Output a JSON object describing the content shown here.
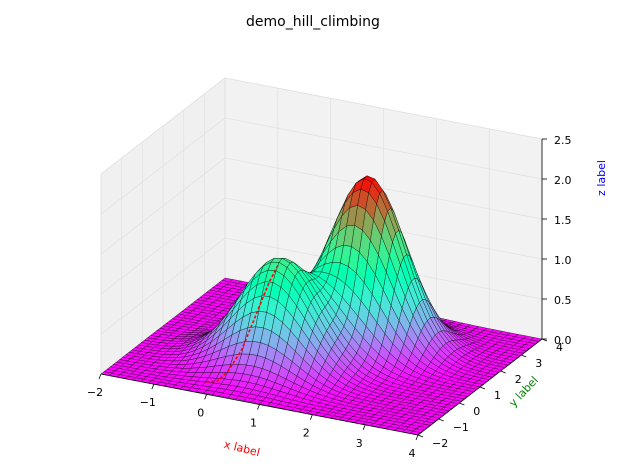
{
  "chart_data": {
    "type": "surface3d",
    "title": "demo_hill_climbing",
    "xlabel": "x label",
    "ylabel": "y label",
    "zlabel": "z label",
    "xlabel_color": "#ff0000",
    "ylabel_color": "#008000",
    "zlabel_color": "#0000ff",
    "xlim": [
      -2,
      4
    ],
    "ylim": [
      -2,
      4
    ],
    "zlim": [
      0,
      2.5
    ],
    "xticks": [
      "−2",
      "−1",
      "0",
      "1",
      "2",
      "3",
      "4"
    ],
    "yticks": [
      "−2",
      "−1",
      "0",
      "1",
      "2",
      "3",
      "4"
    ],
    "zticks": [
      "0.0",
      "0.5",
      "1.0",
      "1.5",
      "2.0",
      "2.5"
    ],
    "colormap": "rainbow",
    "surface": {
      "formula": "z = 2*exp(-((x-1.5)^2+(y-2)^2)/0.9) + 1.3*exp(-((x-0.5)^2+(y-0.2)^2)/1.0)",
      "peaks": [
        {
          "x": 1.5,
          "y": 2.0,
          "z": 2.1
        },
        {
          "x": 0.5,
          "y": 0.2,
          "z": 1.3
        }
      ],
      "grid_n": 40
    },
    "series": [
      {
        "type": "path",
        "color": "#ff0000",
        "style": "dashed",
        "points": [
          {
            "x": -0.2,
            "y": -1.5,
            "z": 0.03
          },
          {
            "x": 0.0,
            "y": -1.5,
            "z": 0.06
          },
          {
            "x": 0.1,
            "y": -1.2,
            "z": 0.15
          },
          {
            "x": 0.2,
            "y": -0.8,
            "z": 0.35
          },
          {
            "x": 0.3,
            "y": -0.4,
            "z": 0.7
          },
          {
            "x": 0.4,
            "y": 0.0,
            "z": 1.05
          },
          {
            "x": 0.5,
            "y": 0.2,
            "z": 1.25
          }
        ]
      }
    ],
    "grid": true
  }
}
